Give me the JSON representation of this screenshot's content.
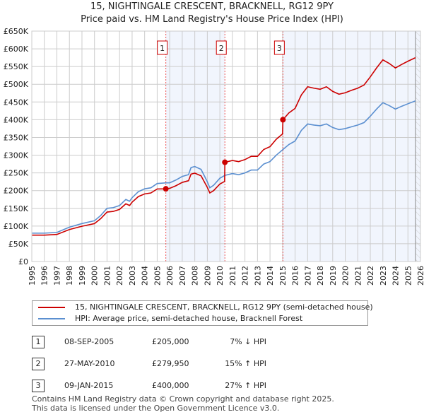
{
  "title": "15, NIGHTINGALE CRESCENT, BRACKNELL, RG12 9PY",
  "subtitle": "Price paid vs. HM Land Registry's House Price Index (HPI)",
  "chart_data": {
    "type": "line",
    "xlim": [
      1995,
      2026
    ],
    "ylim": [
      0,
      650000
    ],
    "x_ticks": [
      "1995",
      "1996",
      "1997",
      "1998",
      "1999",
      "2000",
      "2001",
      "2002",
      "2003",
      "2004",
      "2005",
      "2006",
      "2007",
      "2008",
      "2009",
      "2010",
      "2011",
      "2012",
      "2013",
      "2014",
      "2015",
      "2016",
      "2017",
      "2018",
      "2019",
      "2020",
      "2021",
      "2022",
      "2023",
      "2024",
      "2025",
      "2026"
    ],
    "y_ticks": [
      {
        "v": 0,
        "l": "£0"
      },
      {
        "v": 50000,
        "l": "£50K"
      },
      {
        "v": 100000,
        "l": "£100K"
      },
      {
        "v": 150000,
        "l": "£150K"
      },
      {
        "v": 200000,
        "l": "£200K"
      },
      {
        "v": 250000,
        "l": "£250K"
      },
      {
        "v": 300000,
        "l": "£300K"
      },
      {
        "v": 350000,
        "l": "£350K"
      },
      {
        "v": 400000,
        "l": "£400K"
      },
      {
        "v": 450000,
        "l": "£450K"
      },
      {
        "v": 500000,
        "l": "£500K"
      },
      {
        "v": 550000,
        "l": "£550K"
      },
      {
        "v": 600000,
        "l": "£600K"
      },
      {
        "v": 650000,
        "l": "£650K"
      }
    ],
    "grid": true,
    "series": [
      {
        "name": "15, NIGHTINGALE CRESCENT, BRACKNELL, RG12 9PY (semi-detached house)",
        "color": "#cc0000",
        "x": [
          1995,
          1996,
          1997,
          1998,
          1999,
          2000,
          2000.5,
          2001,
          2001.5,
          2002,
          2002.5,
          2002.8,
          2003,
          2003.5,
          2004,
          2004.5,
          2005,
          2005.69,
          2006,
          2006.5,
          2007,
          2007.5,
          2007.7,
          2008,
          2008.5,
          2009,
          2009.2,
          2009.5,
          2010,
          2010.38,
          2010.4,
          2011,
          2011.5,
          2012,
          2012.5,
          2013,
          2013.5,
          2014,
          2014.5,
          2015.0,
          2015.03,
          2015.5,
          2016,
          2016.5,
          2017,
          2017.5,
          2018,
          2018.5,
          2019,
          2019.5,
          2020,
          2020.5,
          2021,
          2021.5,
          2022,
          2022.5,
          2023,
          2023.5,
          2024,
          2024.5,
          2025,
          2025.6
        ],
        "y": [
          74400,
          74400,
          76300,
          90200,
          99500,
          107000,
          121000,
          139500,
          141400,
          147000,
          162800,
          158000,
          167400,
          183200,
          190700,
          193400,
          204600,
          205000,
          206500,
          213900,
          223200,
          227900,
          246500,
          249200,
          241800,
          209000,
          193400,
          200000,
          218600,
          226000,
          279950,
          285000,
          281800,
          287500,
          296700,
          296700,
          316000,
          324000,
          345000,
          360000,
          400000,
          419000,
          432000,
          470000,
          493000,
          489000,
          486000,
          493000,
          480000,
          472000,
          476000,
          483000,
          489000,
          498000,
          521000,
          546000,
          569000,
          559000,
          546000,
          556000,
          565000,
          575000
        ]
      },
      {
        "name": "HPI: Average price, semi-detached house, Bracknell Forest",
        "color": "#5b8fd0",
        "x": [
          1995,
          1996,
          1997,
          1998,
          1999,
          2000,
          2000.5,
          2001,
          2001.5,
          2002,
          2002.5,
          2002.8,
          2003,
          2003.5,
          2004,
          2004.5,
          2005,
          2005.7,
          2006,
          2006.5,
          2007,
          2007.5,
          2007.7,
          2008,
          2008.5,
          2009,
          2009.2,
          2009.5,
          2010,
          2010.4,
          2011,
          2011.5,
          2012,
          2012.5,
          2013,
          2013.5,
          2014,
          2014.5,
          2015,
          2015.5,
          2016,
          2016.5,
          2017,
          2017.5,
          2018,
          2018.5,
          2019,
          2019.5,
          2020,
          2020.5,
          2021,
          2021.5,
          2022,
          2022.5,
          2023,
          2023.5,
          2024,
          2024.5,
          2025,
          2025.6
        ],
        "y": [
          80000,
          80000,
          82000,
          97000,
          107000,
          115000,
          130000,
          150000,
          152000,
          158000,
          175000,
          170000,
          180000,
          197000,
          205000,
          208000,
          220000,
          222000,
          222000,
          230000,
          240000,
          245000,
          265000,
          268000,
          260000,
          225000,
          208000,
          215000,
          235000,
          243000,
          248000,
          245000,
          250000,
          258000,
          258000,
          275000,
          282000,
          300000,
          315000,
          330000,
          340000,
          370000,
          388000,
          385000,
          383000,
          388000,
          378000,
          372000,
          375000,
          380000,
          385000,
          392000,
          410000,
          430000,
          448000,
          440000,
          430000,
          438000,
          445000,
          453000
        ]
      }
    ],
    "sales": [
      {
        "n": "1",
        "x": 2005.69,
        "y": 205000
      },
      {
        "n": "2",
        "x": 2010.4,
        "y": 279950
      },
      {
        "n": "3",
        "x": 2015.03,
        "y": 400000
      }
    ],
    "shaded": [
      [
        2005.69,
        2010.4
      ],
      [
        2015.03,
        2026
      ]
    ],
    "hatched_from": 2025.6
  },
  "legend": [
    "15, NIGHTINGALE CRESCENT, BRACKNELL, RG12 9PY (semi-detached house)",
    "HPI: Average price, semi-detached house, Bracknell Forest"
  ],
  "transactions": [
    {
      "n": "1",
      "date": "08-SEP-2005",
      "price": "£205,000",
      "hpi": "7% ↓ HPI"
    },
    {
      "n": "2",
      "date": "27-MAY-2010",
      "price": "£279,950",
      "hpi": "15% ↑ HPI"
    },
    {
      "n": "3",
      "date": "09-JAN-2015",
      "price": "£400,000",
      "hpi": "27% ↑ HPI"
    }
  ],
  "footer": [
    "Contains HM Land Registry data © Crown copyright and database right 2025.",
    "This data is licensed under the Open Government Licence v3.0."
  ]
}
